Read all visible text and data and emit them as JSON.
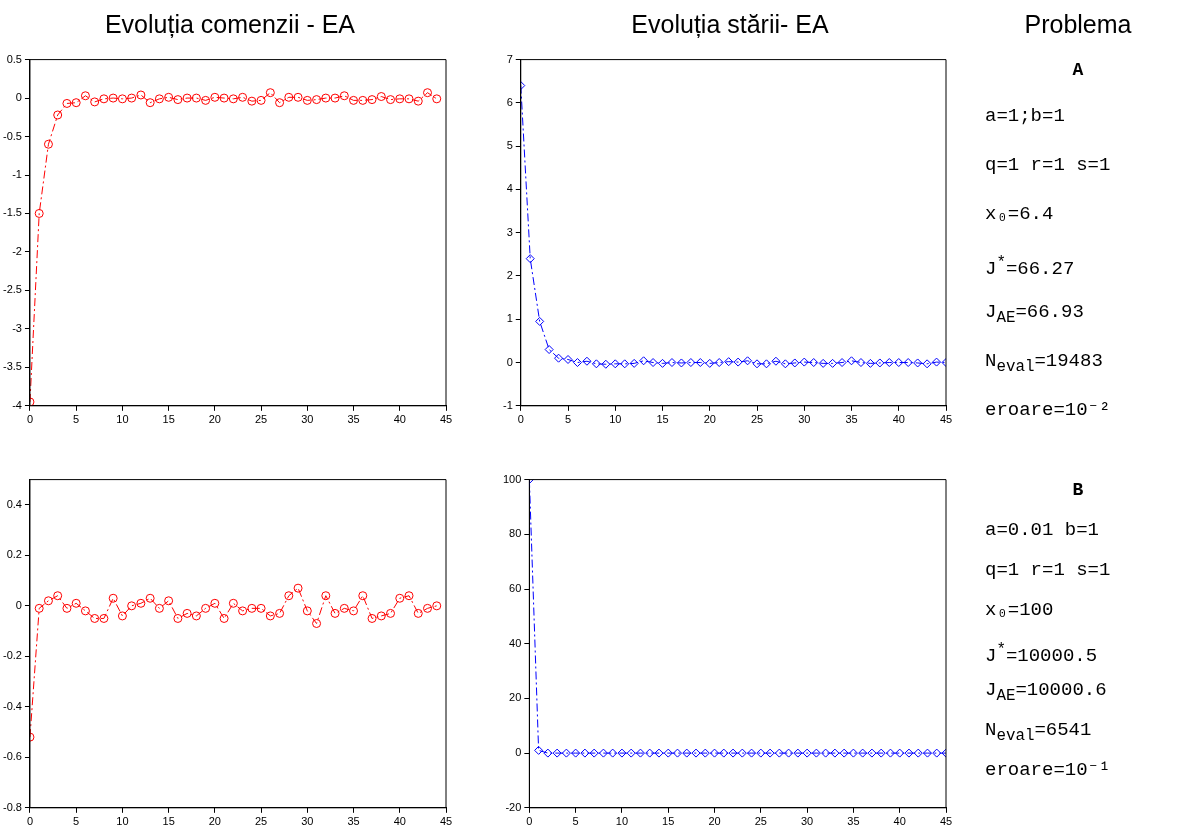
{
  "chart_data": [
    {
      "type": "line",
      "title": "Evoluția comenzii - EA",
      "x": [
        0,
        1,
        2,
        3,
        4,
        5,
        6,
        7,
        8,
        9,
        10,
        11,
        12,
        13,
        14,
        15,
        16,
        17,
        18,
        19,
        20,
        21,
        22,
        23,
        24,
        25,
        26,
        27,
        28,
        29,
        30,
        31,
        32,
        33,
        34,
        35,
        36,
        37,
        38,
        39,
        40,
        41,
        42,
        43,
        44
      ],
      "series": [
        {
          "color": "#ff0000",
          "values": [
            -3.95,
            -1.5,
            -0.6,
            -0.22,
            -0.07,
            -0.06,
            0.03,
            -0.05,
            -0.01,
            0,
            -0.01,
            0,
            0.04,
            -0.06,
            -0.01,
            0.01,
            -0.02,
            0,
            0,
            -0.03,
            0.01,
            0,
            -0.01,
            0.01,
            -0.04,
            -0.03,
            0.07,
            -0.06,
            0.01,
            0.01,
            -0.03,
            -0.02,
            0,
            0,
            0.03,
            -0.03,
            -0.03,
            -0.02,
            0.02,
            -0.02,
            -0.01,
            -0.01,
            -0.04,
            0.07,
            -0.01
          ]
        }
      ],
      "xlim": [
        0,
        45
      ],
      "xticks": [
        0,
        5,
        10,
        15,
        20,
        25,
        30,
        35,
        40,
        45
      ],
      "ylim": [
        -4,
        0.5
      ],
      "yticks": [
        -4,
        -3.5,
        -3,
        -2.5,
        -2,
        -1.5,
        -1,
        -0.5,
        0,
        0.5
      ],
      "grid": false,
      "legend": false,
      "marker": "circle",
      "line_style": "dashed"
    },
    {
      "type": "line",
      "title": "Evoluția stării- EA",
      "x": [
        0,
        1,
        2,
        3,
        4,
        5,
        6,
        7,
        8,
        9,
        10,
        11,
        12,
        13,
        14,
        15,
        16,
        17,
        18,
        19,
        20,
        21,
        22,
        23,
        24,
        25,
        26,
        27,
        28,
        29,
        30,
        31,
        32,
        33,
        34,
        35,
        36,
        37,
        38,
        39,
        40,
        41,
        42,
        43,
        44,
        45
      ],
      "series": [
        {
          "color": "#0000ff",
          "values": [
            6.4,
            2.4,
            0.95,
            0.3,
            0.1,
            0.07,
            0,
            0.03,
            -0.03,
            -0.04,
            -0.03,
            -0.03,
            -0.02,
            0.04,
            0,
            -0.02,
            0,
            -0.01,
            0,
            0,
            -0.02,
            0,
            0.02,
            0.01,
            0.04,
            -0.03,
            -0.03,
            0.03,
            -0.03,
            -0.01,
            0.01,
            0,
            -0.02,
            -0.02,
            0,
            0.04,
            0,
            -0.02,
            -0.01,
            0,
            0,
            0,
            -0.01,
            -0.03,
            0.01,
            0
          ]
        }
      ],
      "xlim": [
        0,
        45
      ],
      "xticks": [
        0,
        5,
        10,
        15,
        20,
        25,
        30,
        35,
        40,
        45
      ],
      "ylim": [
        -1,
        7
      ],
      "yticks": [
        -1,
        0,
        1,
        2,
        3,
        4,
        5,
        6,
        7
      ],
      "grid": false,
      "legend": false,
      "marker": "diamond",
      "line_style": "dashed"
    },
    {
      "type": "other",
      "title": "Problema",
      "subtitle": "A",
      "annotations": [
        "a=1;b=1",
        "q=1 r=1 s=1",
        "x₀=6.4",
        "J$^{*}$=66.27",
        "J$_{AE}$=66.93",
        "N$_{eval}$=19483",
        "eroare=10⁻²"
      ]
    },
    {
      "type": "line",
      "x": [
        0,
        1,
        2,
        3,
        4,
        5,
        6,
        7,
        8,
        9,
        10,
        11,
        12,
        13,
        14,
        15,
        16,
        17,
        18,
        19,
        20,
        21,
        22,
        23,
        24,
        25,
        26,
        27,
        28,
        29,
        30,
        31,
        32,
        33,
        34,
        35,
        36,
        37,
        38,
        39,
        40,
        41,
        42,
        43,
        44
      ],
      "series": [
        {
          "color": "#ff0000",
          "values": [
            -0.52,
            -0.01,
            0.02,
            0.04,
            -0.01,
            0.01,
            -0.02,
            -0.05,
            -0.05,
            0.03,
            -0.04,
            0,
            0.01,
            0.03,
            -0.01,
            0.02,
            -0.05,
            -0.03,
            -0.04,
            -0.01,
            0.01,
            -0.05,
            0.01,
            -0.02,
            -0.01,
            -0.01,
            -0.04,
            -0.03,
            0.04,
            0.07,
            -0.02,
            -0.07,
            0.04,
            -0.03,
            -0.01,
            -0.02,
            0.04,
            -0.05,
            -0.04,
            -0.03,
            0.03,
            0.04,
            -0.03,
            -0.01,
            0
          ]
        }
      ],
      "xlim": [
        0,
        45
      ],
      "xticks": [
        0,
        5,
        10,
        15,
        20,
        25,
        30,
        35,
        40,
        45
      ],
      "ylim": [
        -0.8,
        0.5
      ],
      "yticks": [
        -0.8,
        -0.6,
        -0.4,
        -0.2,
        0,
        0.2,
        0.4
      ],
      "grid": false,
      "legend": false,
      "marker": "circle",
      "line_style": "dashed"
    },
    {
      "type": "line",
      "x": [
        0,
        1,
        2,
        3,
        4,
        5,
        6,
        7,
        8,
        9,
        10,
        11,
        12,
        13,
        14,
        15,
        16,
        17,
        18,
        19,
        20,
        21,
        22,
        23,
        24,
        25,
        26,
        27,
        28,
        29,
        30,
        31,
        32,
        33,
        34,
        35,
        36,
        37,
        38,
        39,
        40,
        41,
        42,
        43,
        44,
        45
      ],
      "series": [
        {
          "color": "#0000ff",
          "values": [
            100,
            1,
            0,
            0,
            0,
            0,
            0,
            0,
            0,
            0,
            0,
            0,
            0,
            0,
            0,
            0,
            0,
            0,
            0,
            0,
            0,
            0,
            0,
            0,
            0,
            0,
            0,
            0,
            0,
            0,
            0,
            0,
            0,
            0,
            0,
            0,
            0,
            0,
            0,
            0,
            0,
            0,
            0,
            0,
            0,
            0
          ]
        }
      ],
      "xlim": [
        0,
        45
      ],
      "xticks": [
        0,
        5,
        10,
        15,
        20,
        25,
        30,
        35,
        40,
        45
      ],
      "ylim": [
        -20,
        100
      ],
      "yticks": [
        -20,
        0,
        20,
        40,
        60,
        80,
        100
      ],
      "grid": false,
      "legend": false,
      "marker": "diamond",
      "line_style": "dashed"
    },
    {
      "type": "other",
      "title": "B",
      "annotations": [
        "a=0.01 b=1",
        "q=1 r=1 s=1",
        "x₀=100",
        "J$^{*}$=10000.5",
        "J$_{AE}$=10000.6",
        "N$_{eval}$=6541",
        "eroare=10⁻¹"
      ]
    }
  ]
}
